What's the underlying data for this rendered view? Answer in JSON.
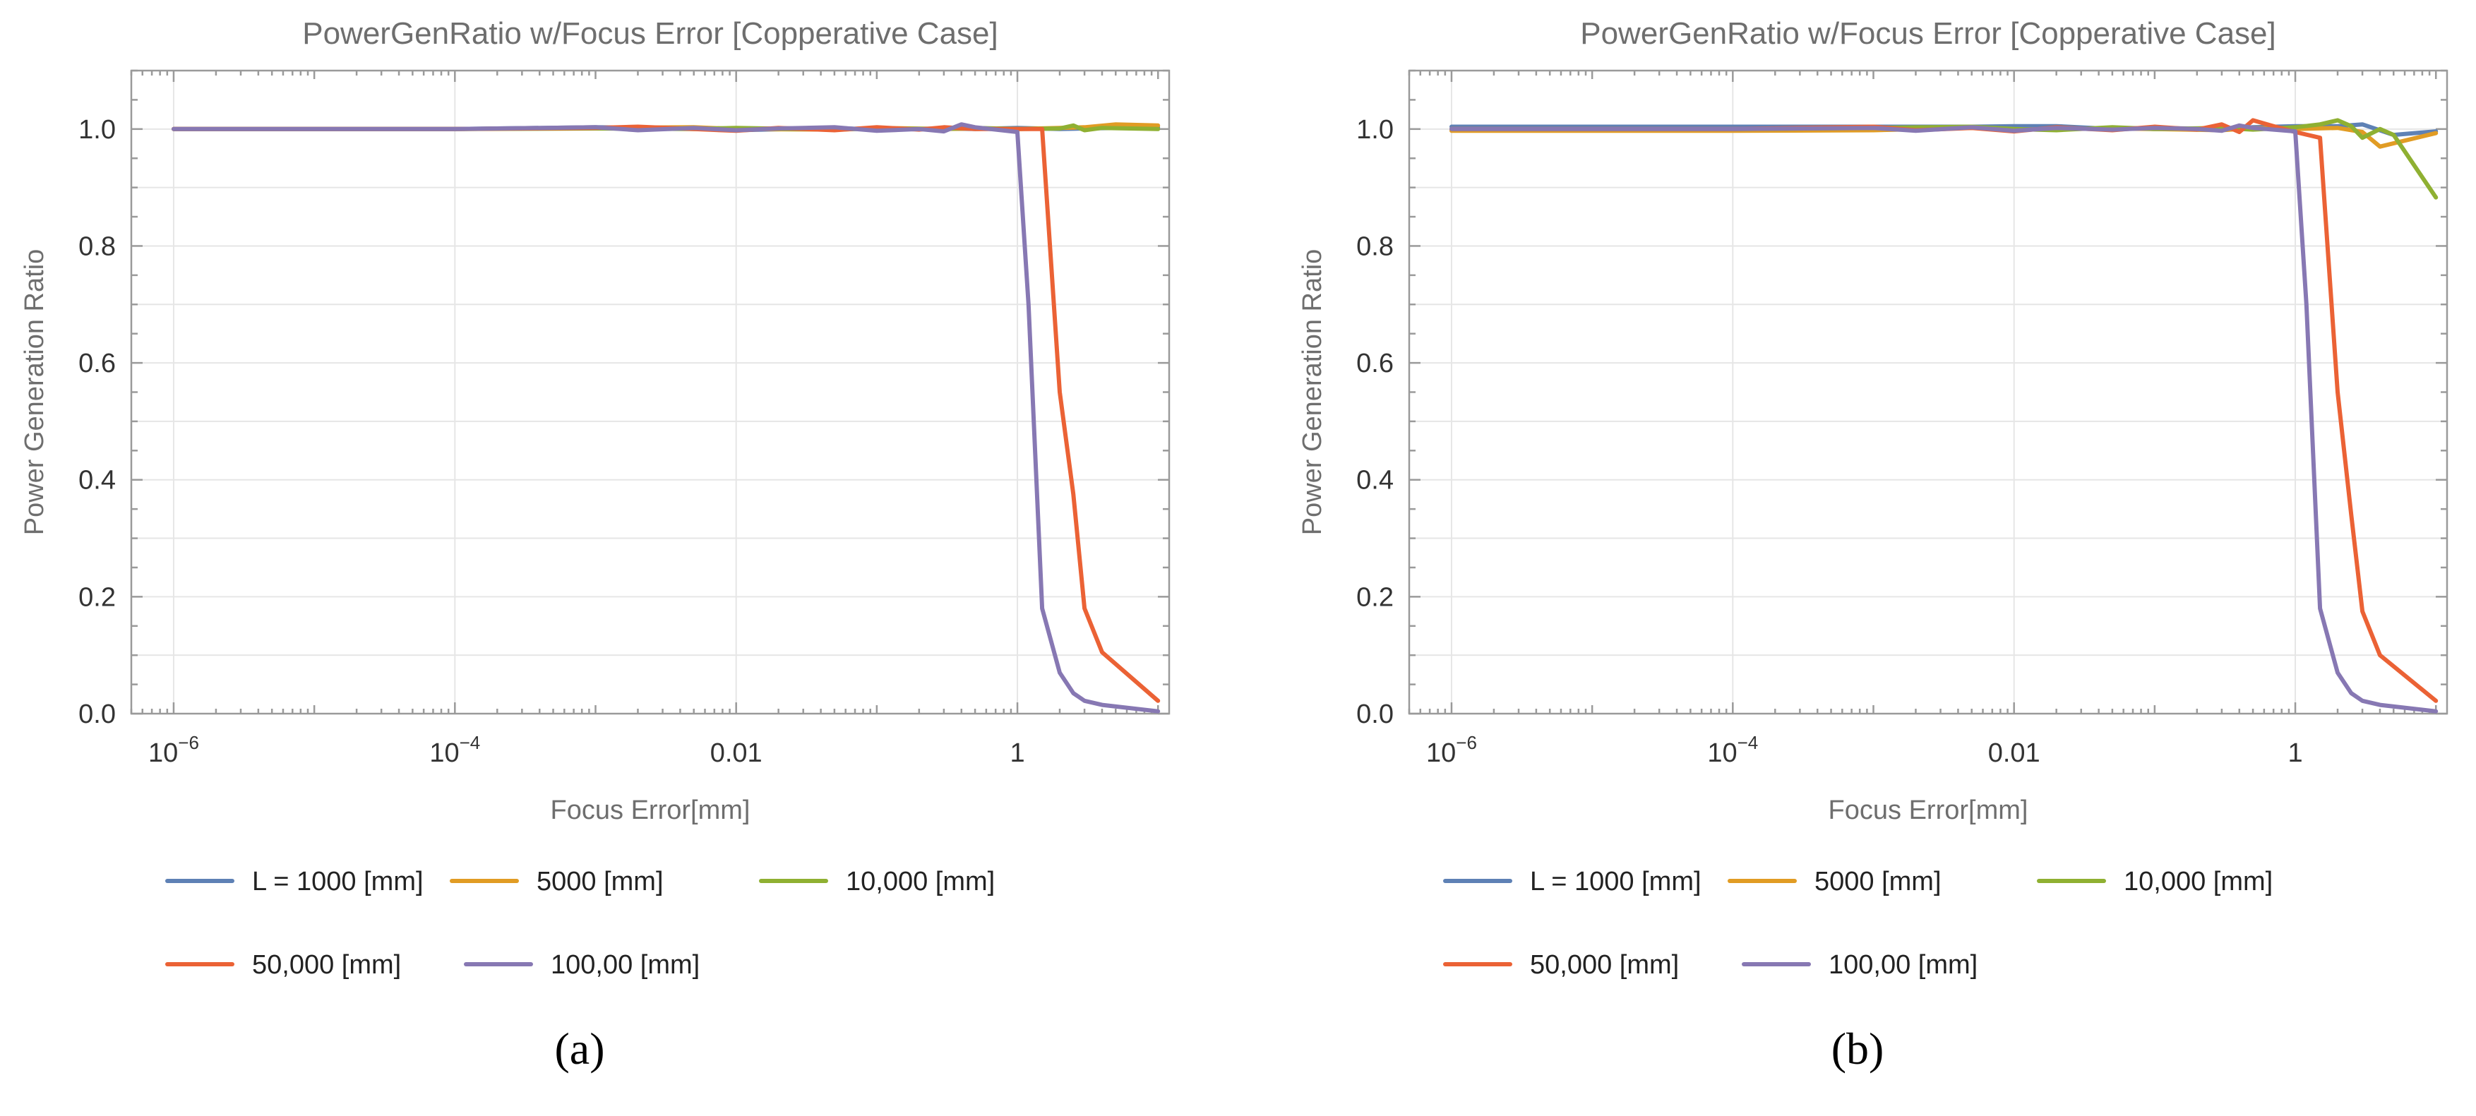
{
  "chart_data": [
    {
      "type": "line",
      "panel_label": "(a)",
      "title": "PowerGenRatio w/Focus Error [Copperative Case]",
      "xlabel": "Focus Error[mm]",
      "ylabel": "Power Generation Ratio",
      "xscale": "log",
      "xlim": [
        5e-07,
        12
      ],
      "ylim": [
        0,
        1.1
      ],
      "xticks": [
        {
          "value": 1e-06,
          "base": "10",
          "exp": "−6"
        },
        {
          "value": 0.0001,
          "base": "10",
          "exp": "−4"
        },
        {
          "value": 0.01,
          "base": "0.01",
          "exp": ""
        },
        {
          "value": 1,
          "base": "1",
          "exp": ""
        }
      ],
      "yticks": [
        {
          "value": 0,
          "label": "0.0"
        },
        {
          "value": 0.2,
          "label": "0.2"
        },
        {
          "value": 0.4,
          "label": "0.4"
        },
        {
          "value": 0.6,
          "label": "0.6"
        },
        {
          "value": 0.8,
          "label": "0.8"
        },
        {
          "value": 1,
          "label": "1.0"
        }
      ],
      "grid": true,
      "legend_position": "bottom",
      "series": [
        {
          "name": "L = 1000 [mm]",
          "color": "#5e81b5",
          "x": [
            1e-06,
            1e-05,
            0.0001,
            0.001,
            0.005,
            0.01,
            0.05,
            0.1,
            0.3,
            0.5,
            1,
            2,
            3,
            5,
            10
          ],
          "y": [
            1,
            1,
            1,
            1.003,
            1.001,
            0.998,
            1.002,
            0.999,
            1.001,
            1,
            1.002,
            1,
            1.001,
            1.002,
            1.003
          ]
        },
        {
          "name": "5000 [mm]",
          "color": "#e19c24",
          "x": [
            1e-06,
            1e-05,
            0.0001,
            0.001,
            0.005,
            0.01,
            0.05,
            0.1,
            0.3,
            0.5,
            1,
            2,
            3,
            5,
            10
          ],
          "y": [
            1,
            1,
            1,
            1.002,
            1.003,
            1,
            0.999,
            1.002,
            1,
            1.001,
            1,
            1.002,
            1.003,
            1.008,
            1.006
          ]
        },
        {
          "name": "10,000 [mm]",
          "color": "#8fb032",
          "x": [
            1e-06,
            1e-05,
            0.0001,
            0.001,
            0.005,
            0.01,
            0.05,
            0.1,
            0.3,
            0.5,
            1,
            2,
            2.5,
            3,
            4,
            10
          ],
          "y": [
            1,
            1,
            1,
            1.001,
            1,
            1.002,
            0.999,
            1.001,
            1,
            1.002,
            1,
            1.001,
            1.006,
            0.998,
            1.002,
            1
          ]
        },
        {
          "name": "50,000 [mm]",
          "color": "#eb6235",
          "x": [
            1e-06,
            1e-05,
            0.0001,
            0.001,
            0.002,
            0.005,
            0.01,
            0.02,
            0.05,
            0.1,
            0.2,
            0.3,
            0.5,
            1,
            1.5,
            2,
            2.5,
            3,
            4,
            10
          ],
          "y": [
            1,
            1,
            1,
            1.002,
            1.004,
            1,
            0.997,
            1.002,
            0.998,
            1.003,
            0.999,
            1.003,
            1,
            1,
            1,
            0.55,
            0.375,
            0.18,
            0.105,
            0.022
          ]
        },
        {
          "name": "100,00 [mm]",
          "color": "#8778b3",
          "x": [
            1e-06,
            1e-05,
            0.0001,
            0.001,
            0.002,
            0.005,
            0.01,
            0.02,
            0.05,
            0.1,
            0.2,
            0.3,
            0.4,
            0.5,
            1,
            1.2,
            1.5,
            2,
            2.5,
            3,
            4,
            10
          ],
          "y": [
            1,
            1,
            1,
            1.003,
            0.998,
            1.002,
            0.998,
            1.001,
            1.003,
            0.997,
            1,
            0.996,
            1.008,
            1.003,
            0.995,
            0.7,
            0.18,
            0.07,
            0.035,
            0.022,
            0.015,
            0.004
          ]
        }
      ]
    },
    {
      "type": "line",
      "panel_label": "(b)",
      "title": "PowerGenRatio w/Focus Error [Copperative Case]",
      "xlabel": "Focus Error[mm]",
      "ylabel": "Power Generation Ratio",
      "xscale": "log",
      "xlim": [
        5e-07,
        12
      ],
      "ylim": [
        0,
        1.1
      ],
      "xticks": [
        {
          "value": 1e-06,
          "base": "10",
          "exp": "−6"
        },
        {
          "value": 0.0001,
          "base": "10",
          "exp": "−4"
        },
        {
          "value": 0.01,
          "base": "0.01",
          "exp": ""
        },
        {
          "value": 1,
          "base": "1",
          "exp": ""
        }
      ],
      "yticks": [
        {
          "value": 0,
          "label": "0.0"
        },
        {
          "value": 0.2,
          "label": "0.2"
        },
        {
          "value": 0.4,
          "label": "0.4"
        },
        {
          "value": 0.6,
          "label": "0.6"
        },
        {
          "value": 0.8,
          "label": "0.8"
        },
        {
          "value": 1,
          "label": "1.0"
        }
      ],
      "grid": true,
      "legend_position": "bottom",
      "series": [
        {
          "name": "L = 1000 [mm]",
          "color": "#5e81b5",
          "x": [
            1e-06,
            1e-05,
            0.0001,
            0.001,
            0.005,
            0.01,
            0.02,
            0.05,
            0.1,
            0.3,
            0.5,
            1,
            2,
            3,
            5,
            10
          ],
          "y": [
            1.004,
            1.004,
            1.004,
            1.004,
            1.004,
            1.005,
            1.005,
            1,
            1.002,
            1,
            1.003,
            1.005,
            1.005,
            1.008,
            0.99,
            0.996
          ]
        },
        {
          "name": "5000 [mm]",
          "color": "#e19c24",
          "x": [
            1e-06,
            1e-05,
            0.0001,
            0.001,
            0.005,
            0.01,
            0.05,
            0.1,
            0.3,
            0.5,
            1,
            2,
            3,
            4,
            10
          ],
          "y": [
            0.997,
            0.997,
            0.997,
            0.998,
            1.002,
            0.999,
            1.001,
            1,
            0.998,
            1.002,
            1,
            1.002,
            0.995,
            0.97,
            0.993
          ]
        },
        {
          "name": "10,000 [mm]",
          "color": "#8fb032",
          "x": [
            1e-06,
            1e-05,
            0.0001,
            0.001,
            0.005,
            0.01,
            0.02,
            0.05,
            0.1,
            0.3,
            0.5,
            1,
            1.5,
            2,
            2.5,
            3,
            4,
            5,
            10
          ],
          "y": [
            1,
            1,
            1,
            1.002,
            1.004,
            1,
            0.998,
            1.003,
            1,
            1.002,
            0.999,
            1.003,
            1.008,
            1.015,
            1.005,
            0.985,
            1,
            0.99,
            0.883
          ]
        },
        {
          "name": "50,000 [mm]",
          "color": "#eb6235",
          "x": [
            1e-06,
            1e-05,
            0.0001,
            0.001,
            0.002,
            0.005,
            0.01,
            0.02,
            0.05,
            0.1,
            0.2,
            0.3,
            0.4,
            0.5,
            0.7,
            1,
            1.5,
            2,
            2.5,
            3,
            4,
            10
          ],
          "y": [
            1,
            1,
            1,
            1.004,
            0.998,
            1.002,
            0.996,
            1.003,
            0.998,
            1.004,
            0.999,
            1.008,
            0.995,
            1.015,
            1.005,
            0.995,
            0.985,
            0.55,
            0.34,
            0.175,
            0.1,
            0.022
          ]
        },
        {
          "name": "100,00 [mm]",
          "color": "#8778b3",
          "x": [
            1e-06,
            1e-05,
            0.0001,
            0.001,
            0.002,
            0.005,
            0.01,
            0.02,
            0.05,
            0.1,
            0.2,
            0.3,
            0.4,
            0.5,
            1,
            1.2,
            1.5,
            2,
            2.5,
            3,
            4,
            10
          ],
          "y": [
            1,
            1,
            1,
            1.002,
            0.997,
            1.003,
            0.997,
            1.002,
            0.999,
            1.002,
            1,
            0.997,
            1.006,
            1.002,
            0.996,
            0.7,
            0.18,
            0.07,
            0.035,
            0.022,
            0.015,
            0.004
          ]
        }
      ]
    }
  ]
}
